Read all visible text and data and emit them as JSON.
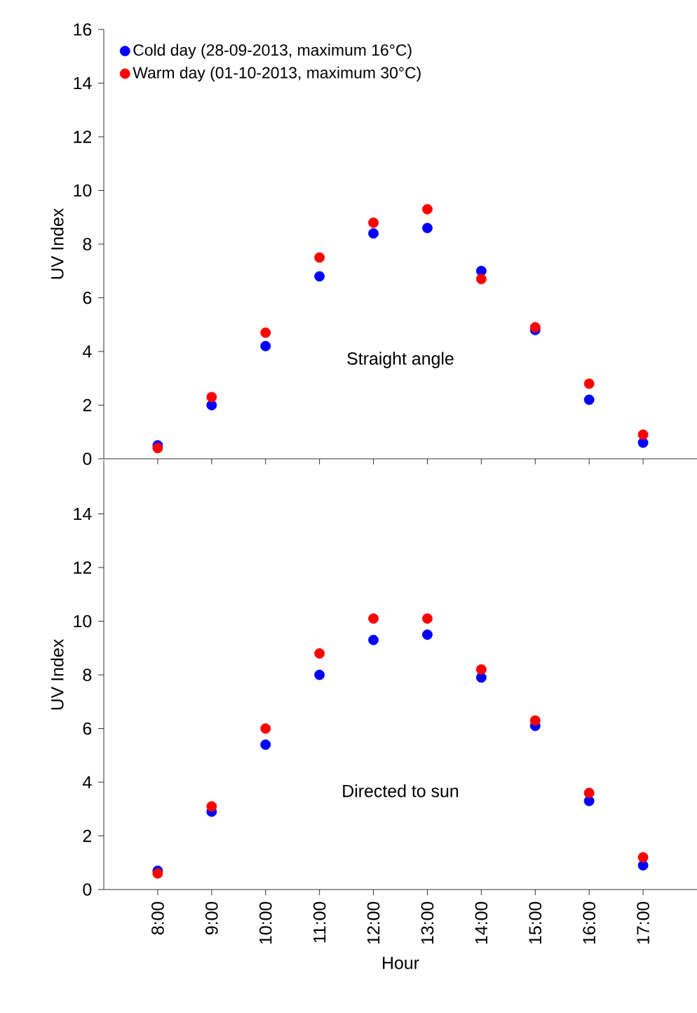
{
  "chart_data": [
    {
      "type": "scatter",
      "categories": [
        null,
        null,
        null,
        null,
        null,
        null,
        null,
        null,
        null,
        null
      ],
      "ylabel": "UV Index",
      "ylim": [
        0,
        16
      ],
      "yticks": [
        0,
        2,
        4,
        6,
        8,
        10,
        12,
        14,
        16
      ],
      "tick_labels": "y",
      "marker": "circle",
      "legend": "top left",
      "annotations": [
        "Straight angle"
      ],
      "series": [
        {
          "name": "Cold day (28-09-2013, maximum 16°C)",
          "color": "#0000ff",
          "values": [
            0.5,
            2.0,
            4.2,
            6.8,
            8.4,
            8.6,
            7.0,
            4.8,
            2.2,
            0.6
          ]
        },
        {
          "name": "Warm day (01-10-2013, maximum 30°C)",
          "color": "#ff0000",
          "values": [
            0.4,
            2.3,
            4.7,
            7.5,
            8.8,
            9.3,
            6.7,
            4.9,
            2.8,
            0.9
          ]
        }
      ]
    },
    {
      "type": "scatter",
      "categories": [
        "8:00",
        "9:00",
        "10:00",
        "11:00",
        "12:00",
        "13:00",
        "14:00",
        "15:00",
        "16:00",
        "17:00"
      ],
      "xlabel": "Hour",
      "ylabel": "UV Index",
      "ylim": [
        0,
        16
      ],
      "yticks": [
        0,
        2,
        4,
        6,
        8,
        10,
        12,
        14
      ],
      "marker": "circle",
      "annotations": [
        "Directed to sun"
      ],
      "series": [
        {
          "color": "#0000ff",
          "values": [
            0.7,
            2.9,
            5.4,
            8.0,
            9.3,
            9.5,
            7.9,
            6.1,
            3.3,
            0.9
          ]
        },
        {
          "color": "#ff0000",
          "values": [
            0.6,
            3.1,
            6.0,
            8.8,
            10.1,
            10.1,
            8.2,
            6.3,
            3.6,
            1.2
          ]
        }
      ]
    }
  ]
}
